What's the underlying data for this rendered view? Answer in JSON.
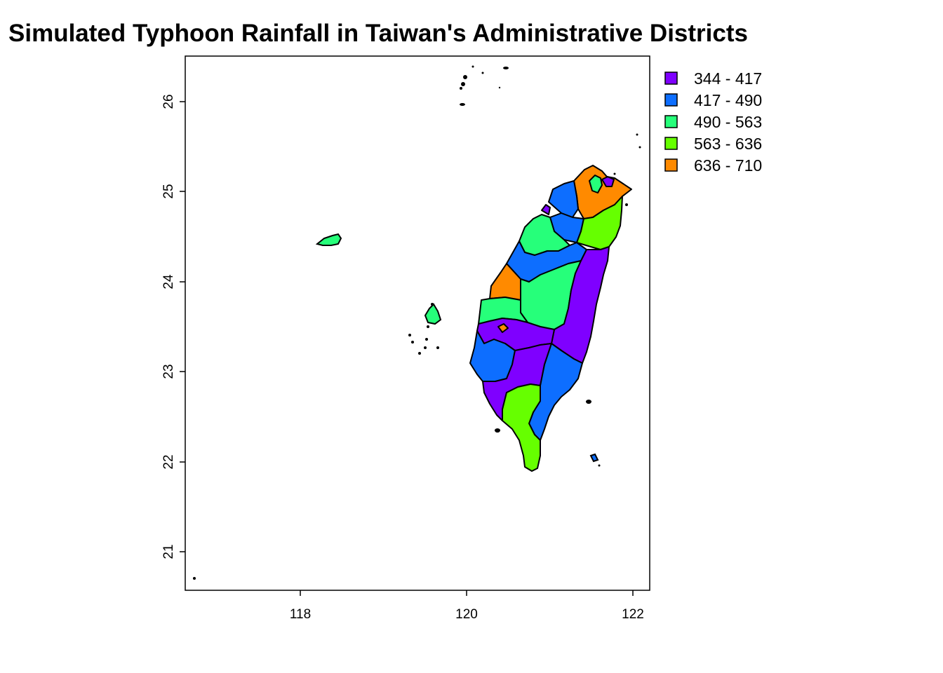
{
  "title": "Simulated Typhoon Rainfall in Taiwan's Administrative Districts",
  "axes": {
    "x_ticks": [
      "118",
      "120",
      "122"
    ],
    "y_ticks": [
      "21",
      "22",
      "23",
      "24",
      "25",
      "26"
    ],
    "xlim": [
      116.7,
      122.2
    ],
    "ylim": [
      20.6,
      26.5
    ]
  },
  "legend": {
    "position": "top-right, outside plot",
    "items": [
      {
        "label": "344 - 417",
        "color": "#7F00FF"
      },
      {
        "label": "417 - 490",
        "color": "#0D6EFF"
      },
      {
        "label": "490 - 563",
        "color": "#26FF7A"
      },
      {
        "label": "563 - 636",
        "color": "#66FF00"
      },
      {
        "label": "636 - 710",
        "color": "#FF8A00"
      }
    ]
  },
  "chart_data": {
    "type": "choropleth",
    "title": "Simulated Typhoon Rainfall in Taiwan's Administrative Districts",
    "xlim": [
      116.7,
      122.2
    ],
    "ylim": [
      20.6,
      26.5
    ],
    "x_ticks": [
      118,
      120,
      122
    ],
    "y_ticks": [
      21,
      22,
      23,
      24,
      25,
      26
    ],
    "classes": [
      "344 - 417",
      "417 - 490",
      "490 - 563",
      "563 - 636",
      "636 - 710"
    ],
    "class_colors": [
      "#7F00FF",
      "#0D6EFF",
      "#26FF7A",
      "#66FF00",
      "#FF8A00"
    ]
  }
}
